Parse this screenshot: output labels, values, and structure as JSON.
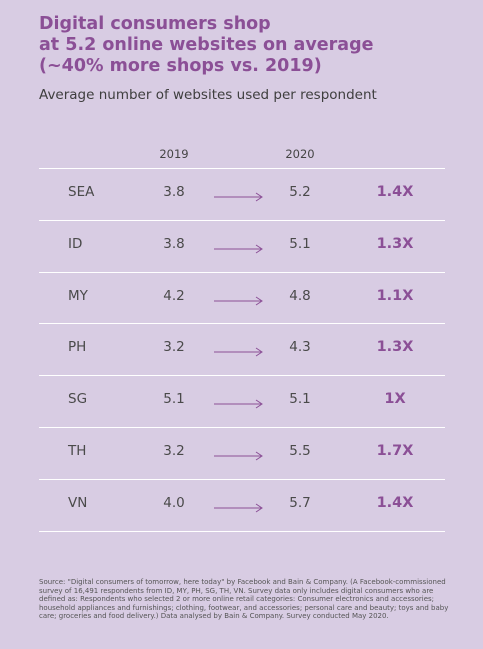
{
  "title_lines": [
    "Digital consumers shop",
    "at 5.2 online websites on average",
    "(~40% more shops vs. 2019)"
  ],
  "subtitle": "Average number of websites used per respondent",
  "columns": {
    "y2019": "2019",
    "y2020": "2020"
  },
  "rows": [
    {
      "country": "SEA",
      "v2019": "3.8",
      "v2020": "5.2",
      "multiplier": "1.4X"
    },
    {
      "country": "ID",
      "v2019": "3.8",
      "v2020": "5.1",
      "multiplier": "1.3X"
    },
    {
      "country": "MY",
      "v2019": "4.2",
      "v2020": "4.8",
      "multiplier": "1.1X"
    },
    {
      "country": "PH",
      "v2019": "3.2",
      "v2020": "4.3",
      "multiplier": "1.3X"
    },
    {
      "country": "SG",
      "v2019": "5.1",
      "v2020": "5.1",
      "multiplier": "1X"
    },
    {
      "country": "TH",
      "v2019": "3.2",
      "v2020": "5.5",
      "multiplier": "1.7X"
    },
    {
      "country": "VN",
      "v2019": "4.0",
      "v2020": "5.7",
      "multiplier": "1.4X"
    }
  ],
  "source": "Source: \"Digital consumers of tomorrow, here today\" by Facebook and Bain & Company. (A Facebook-commissioned survey of 16,491 respondents from ID, MY, PH, SG, TH, VN. Survey data only includes digital consumers who are defined as: Respondents who selected 2 or more online retail categories: Consumer electronics and accessories; household appliances and furnishings; clothing, footwear, and accessories; personal care and beauty; toys and baby care; groceries and food delivery.) Data analysed by Bain & Company. Survey conducted May 2020.",
  "colors": {
    "background": "#d8cce3",
    "accent": "#8b4f96",
    "divider": "#ffffff"
  }
}
